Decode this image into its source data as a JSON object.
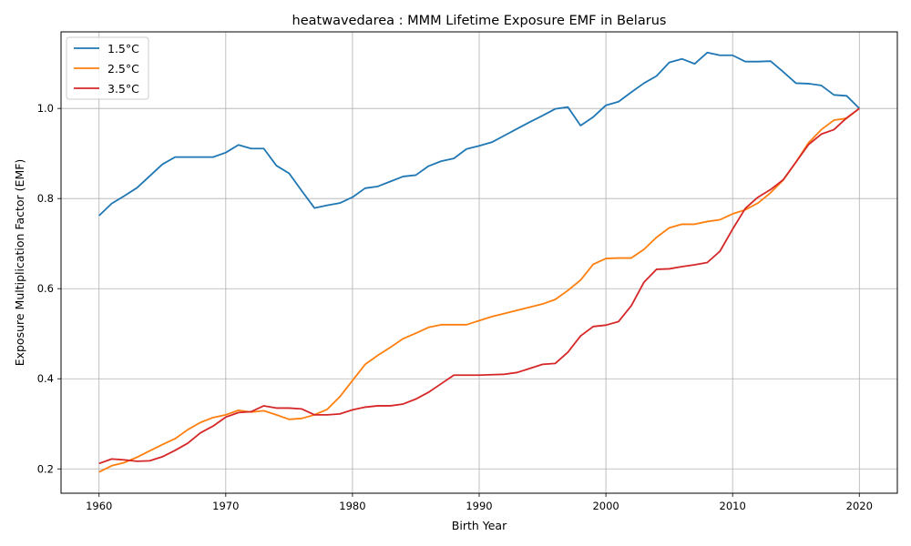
{
  "chart_data": {
    "type": "line",
    "title": "heatwavedarea : MMM Lifetime Exposure EMF in Belarus",
    "xlabel": "Birth Year",
    "ylabel": "Exposure Multiplication Factor (EMF)",
    "xlim": [
      1957,
      2023
    ],
    "ylim": [
      0.146,
      1.17
    ],
    "xticks": [
      1960,
      1970,
      1980,
      1990,
      2000,
      2010,
      2020
    ],
    "yticks": [
      0.2,
      0.4,
      0.6,
      0.8,
      1.0
    ],
    "xtick_labels": [
      "1960",
      "1970",
      "1980",
      "1990",
      "2000",
      "2010",
      "2020"
    ],
    "ytick_labels": [
      "0.2",
      "0.4",
      "0.6",
      "0.8",
      "1.0"
    ],
    "grid": true,
    "legend_position": "top-left",
    "x": [
      1960,
      1961,
      1962,
      1963,
      1964,
      1965,
      1966,
      1967,
      1968,
      1969,
      1970,
      1971,
      1972,
      1973,
      1974,
      1975,
      1976,
      1977,
      1978,
      1979,
      1980,
      1981,
      1982,
      1983,
      1984,
      1985,
      1986,
      1987,
      1988,
      1989,
      1990,
      1991,
      1992,
      1993,
      1994,
      1995,
      1996,
      1997,
      1998,
      1999,
      2000,
      2001,
      2002,
      2003,
      2004,
      2005,
      2006,
      2007,
      2008,
      2009,
      2010,
      2011,
      2012,
      2013,
      2014,
      2015,
      2016,
      2017,
      2018,
      2019,
      2020
    ],
    "series": [
      {
        "name": "1.5°C",
        "color": "#1f77b4",
        "values": [
          0.762,
          0.789,
          0.806,
          0.824,
          0.85,
          0.876,
          0.892,
          0.892,
          0.892,
          0.892,
          0.902,
          0.919,
          0.911,
          0.911,
          0.873,
          0.856,
          0.817,
          0.779,
          0.785,
          0.79,
          0.803,
          0.823,
          0.827,
          0.838,
          0.849,
          0.852,
          0.872,
          0.883,
          0.889,
          0.91,
          0.917,
          0.925,
          0.94,
          0.955,
          0.97,
          0.984,
          0.999,
          1.003,
          0.962,
          0.981,
          1.007,
          1.015,
          1.036,
          1.056,
          1.072,
          1.102,
          1.11,
          1.099,
          1.124,
          1.118,
          1.118,
          1.104,
          1.104,
          1.105,
          1.081,
          1.056,
          1.055,
          1.051,
          1.03,
          1.028,
          1.0
        ]
      },
      {
        "name": "2.5°C",
        "color": "#ff7f0e",
        "values": [
          0.193,
          0.207,
          0.214,
          0.226,
          0.24,
          0.254,
          0.267,
          0.287,
          0.303,
          0.314,
          0.32,
          0.33,
          0.326,
          0.329,
          0.32,
          0.31,
          0.312,
          0.32,
          0.332,
          0.36,
          0.396,
          0.432,
          0.452,
          0.47,
          0.489,
          0.501,
          0.514,
          0.52,
          0.52,
          0.52,
          0.529,
          0.538,
          0.545,
          0.552,
          0.559,
          0.566,
          0.576,
          0.596,
          0.619,
          0.654,
          0.667,
          0.668,
          0.668,
          0.687,
          0.714,
          0.735,
          0.743,
          0.743,
          0.749,
          0.753,
          0.766,
          0.775,
          0.79,
          0.813,
          0.841,
          0.881,
          0.924,
          0.953,
          0.974,
          0.978,
          1.0
        ]
      },
      {
        "name": "3.5°C",
        "color": "#d62728",
        "values": [
          0.212,
          0.222,
          0.22,
          0.217,
          0.218,
          0.227,
          0.241,
          0.257,
          0.28,
          0.295,
          0.315,
          0.325,
          0.327,
          0.34,
          0.335,
          0.335,
          0.333,
          0.32,
          0.32,
          0.322,
          0.331,
          0.337,
          0.34,
          0.34,
          0.344,
          0.355,
          0.37,
          0.389,
          0.408,
          0.408,
          0.408,
          0.409,
          0.41,
          0.414,
          0.423,
          0.432,
          0.434,
          0.459,
          0.495,
          0.516,
          0.519,
          0.527,
          0.562,
          0.614,
          0.643,
          0.644,
          0.649,
          0.653,
          0.658,
          0.683,
          0.732,
          0.778,
          0.803,
          0.82,
          0.842,
          0.881,
          0.92,
          0.943,
          0.953,
          0.979,
          1.0
        ]
      }
    ]
  }
}
